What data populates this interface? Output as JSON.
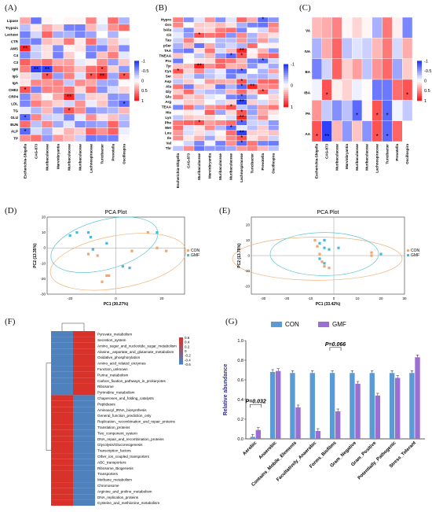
{
  "panels": {
    "A": {
      "label": "(A)",
      "rows": [
        "Lipase",
        "Trypsin",
        "Lactase",
        "CTR",
        "AMS",
        "C4",
        "C3",
        "IgM",
        "IgG",
        "IgA",
        "CHE2",
        "CRP4",
        "LDL",
        "TG",
        "GLU",
        "BUN",
        "ALP",
        "TP"
      ],
      "cols": [
        "Escherichia-Shigella",
        "CAG-873",
        "Muribaculaceae",
        "Marvinbryantia",
        "Muribaculaceae",
        "Muribaculaceae",
        "Lachnospiraceae",
        "Turicibacter",
        "Prevotella",
        "Oscillospira"
      ],
      "legend": [
        "-1",
        "-0.5",
        "0",
        "0.5",
        "1"
      ],
      "stars": [
        {
          "r": 4,
          "c": 0,
          "t": "**"
        },
        {
          "r": 7,
          "c": 1,
          "t": "**"
        },
        {
          "r": 7,
          "c": 2,
          "t": "**"
        },
        {
          "r": 7,
          "c": 7,
          "t": "*"
        },
        {
          "r": 8,
          "c": 2,
          "t": "*"
        },
        {
          "r": 8,
          "c": 6,
          "t": "*"
        },
        {
          "r": 8,
          "c": 7,
          "t": "**"
        },
        {
          "r": 8,
          "c": 9,
          "t": "*"
        },
        {
          "r": 10,
          "c": 0,
          "t": "*"
        },
        {
          "r": 11,
          "c": 4,
          "t": "**"
        },
        {
          "r": 12,
          "c": 9,
          "t": "*"
        },
        {
          "r": 13,
          "c": 4,
          "t": "*"
        },
        {
          "r": 14,
          "c": 0,
          "t": "*"
        },
        {
          "r": 16,
          "c": 0,
          "t": "*"
        }
      ]
    },
    "B": {
      "label": "(B)",
      "rows": [
        "Hypro",
        "Orn",
        "bAla",
        "Cit",
        "Tau",
        "pSer",
        "TAA",
        "TNEAA",
        "Pro",
        "Tyr",
        "Cys",
        "Ser",
        "Asp",
        "Ala",
        "Gly",
        "Glu",
        "Arg",
        "TEAA",
        "His",
        "Lys",
        "Phe",
        "Met",
        "Leu",
        "Ile",
        "Val",
        "Thr"
      ],
      "cols": [
        "Escherichia-Shigella",
        "CAG-873",
        "Muribaculaceae",
        "Marvinbryantia",
        "Muribaculaceae",
        "Muribaculaceae",
        "Lachnospiraceae",
        "Turicibacter",
        "Prevotella",
        "Oscillospira"
      ],
      "legend": [
        "-1",
        "0",
        "1"
      ],
      "stars": [
        {
          "r": 0,
          "c": 8,
          "t": "*"
        },
        {
          "r": 3,
          "c": 2,
          "t": "*"
        },
        {
          "r": 6,
          "c": 6,
          "t": "**"
        },
        {
          "r": 7,
          "c": 5,
          "t": "*"
        },
        {
          "r": 7,
          "c": 6,
          "t": "*"
        },
        {
          "r": 8,
          "c": 8,
          "t": "*"
        },
        {
          "r": 9,
          "c": 2,
          "t": "**"
        },
        {
          "r": 10,
          "c": 0,
          "t": "*"
        },
        {
          "r": 10,
          "c": 6,
          "t": "*"
        },
        {
          "r": 12,
          "c": 6,
          "t": "*"
        },
        {
          "r": 13,
          "c": 6,
          "t": "*"
        },
        {
          "r": 13,
          "c": 7,
          "t": "**"
        },
        {
          "r": 14,
          "c": 8,
          "t": "*"
        },
        {
          "r": 15,
          "c": 6,
          "t": "*"
        },
        {
          "r": 16,
          "c": 6,
          "t": "**"
        },
        {
          "r": 17,
          "c": 5,
          "t": "*"
        },
        {
          "r": 18,
          "c": 6,
          "t": "*"
        },
        {
          "r": 19,
          "c": 6,
          "t": "**"
        },
        {
          "r": 20,
          "c": 6,
          "t": "*"
        },
        {
          "r": 21,
          "c": 5,
          "t": "*"
        },
        {
          "r": 22,
          "c": 6,
          "t": "**"
        },
        {
          "r": 23,
          "c": 6,
          "t": "*"
        },
        {
          "r": 24,
          "c": 6,
          "t": "*"
        },
        {
          "r": 20,
          "c": 2,
          "t": "*"
        }
      ]
    },
    "C": {
      "label": "(C)",
      "rows": [
        "VA",
        "IVA",
        "BA",
        "IBA",
        "PA",
        "AA"
      ],
      "cols": [
        "Escherichia-Shigella",
        "CAG-873",
        "Muribaculaceae",
        "Marvinbryantia",
        "Muribaculaceae",
        "Muribaculaceae",
        "Lachnospiraceae",
        "Turicibacter",
        "Prevotella",
        "Oscillospira"
      ],
      "legend": [
        "-1",
        "-0.5",
        "0",
        "0.5",
        "1"
      ],
      "stars": [
        {
          "r": 3,
          "c": 1,
          "t": "*"
        },
        {
          "r": 3,
          "c": 9,
          "t": "*"
        },
        {
          "r": 4,
          "c": 4,
          "t": "*"
        },
        {
          "r": 4,
          "c": 6,
          "t": "*"
        },
        {
          "r": 4,
          "c": 7,
          "t": "*"
        },
        {
          "r": 5,
          "c": 0,
          "t": "*"
        },
        {
          "r": 5,
          "c": 1,
          "t": "**"
        },
        {
          "r": 5,
          "c": 6,
          "t": "*"
        },
        {
          "r": 5,
          "c": 7,
          "t": "*"
        }
      ]
    },
    "D": {
      "label": "(D)",
      "title": "PCA Plot",
      "xlabel": "PC1 (30.27%)",
      "ylabel": "PC2 (13.35%)",
      "xticks": [
        "-20",
        "0",
        "20"
      ],
      "yticks": [
        "20",
        "10",
        "0",
        "-10",
        "-20",
        "-30"
      ],
      "legend": [
        "CON",
        "GMF"
      ],
      "con": [
        [
          -12,
          -4
        ],
        [
          -8,
          -5
        ],
        [
          -4,
          -18
        ],
        [
          -3,
          -18
        ],
        [
          -6,
          -22
        ],
        [
          7,
          -2
        ],
        [
          18,
          0
        ],
        [
          22,
          -2
        ],
        [
          14,
          10
        ]
      ],
      "gmf": [
        [
          -20,
          8
        ],
        [
          -17,
          10
        ],
        [
          -12,
          10
        ],
        [
          -11,
          7
        ],
        [
          -10,
          -1
        ],
        [
          -4,
          3
        ],
        [
          3,
          -12
        ],
        [
          6,
          -13
        ],
        [
          18,
          10
        ]
      ]
    },
    "E": {
      "label": "(E)",
      "title": "PCA Plot",
      "xlabel": "PC1 (33.42%)",
      "ylabel": "PC2 (13.78%)",
      "xticks": [
        "-30",
        "-20",
        "-10",
        "0",
        "10",
        "20",
        "30"
      ],
      "yticks": [
        "20",
        "10",
        "0",
        "-10",
        "-20"
      ],
      "legend": [
        "CON",
        "GMF"
      ],
      "con": [
        [
          -8,
          10
        ],
        [
          -7,
          6
        ],
        [
          -6,
          1
        ],
        [
          -5,
          -4
        ],
        [
          -4,
          -7
        ],
        [
          -2,
          -8
        ],
        [
          16,
          2
        ],
        [
          16,
          0
        ]
      ],
      "gmf": [
        [
          -6,
          8
        ],
        [
          -4,
          10
        ],
        [
          -4,
          5
        ],
        [
          -2,
          4
        ],
        [
          -6,
          -2
        ],
        [
          -4,
          -5
        ],
        [
          2,
          5
        ],
        [
          20,
          1
        ]
      ]
    },
    "F": {
      "label": "(F)",
      "xlabels": [
        "CON",
        "GMF"
      ],
      "legend": [
        "0.6",
        "0.4",
        "0.2",
        "0",
        "-0.2",
        "-0.4",
        "-0.6"
      ],
      "rows": [
        "Pyruvate_metabolism",
        "Secretion_system",
        "Amino_sugar_and_nucleotide_sugar_metabolism",
        "Alanine,_aspartate_and_glutamate_metabolism",
        "Oxidative_phosphorylation",
        "Amino_acid_related_enzymes",
        "Function_unknown",
        "Purine_metabolism",
        "Carbon_fixation_pathways_in_prokaryotes",
        "Ribosome",
        "Pyrimidine_metabolism",
        "Chaperones_and_folding_catalysts",
        "Peptidases",
        "Aminoacyl_tRNA_biosynthesis",
        "General_function_prediction_only",
        "Replication,_recombination_and_repair_proteins",
        "Translation_proteins",
        "Two_component_system",
        "DNA_repair_and_recombination_proteins",
        "Glycolysis/Gluconeogenesis",
        "Transcription_factors",
        "Other_ion_coupled_transporters",
        "ABC_transporters",
        "Ribosome_Biogenesis",
        "Transporters",
        "Methane_metabolism",
        "Chromosome",
        "Arginine_and_proline_metabolism",
        "DNA_replication_proteins",
        "Cysteine_and_methionine_metabolism"
      ]
    },
    "G": {
      "label": "(G)",
      "ylabel": "Relative abundance",
      "legend": [
        "CON",
        "GMF"
      ],
      "annotations": [
        "P=0.032",
        "P=0.066"
      ],
      "yticks": [
        "0.0",
        "0.2",
        "0.4",
        "0.6",
        "0.8",
        "1.0"
      ]
    }
  },
  "chart_data": [
    {
      "type": "bar",
      "ylabel": "Relative abundance",
      "ylim": [
        0,
        1.0
      ],
      "categories": [
        "Aerobic",
        "Anaerobic",
        "Contains_Mobile_Elements",
        "Facultatively_Anaerobic",
        "Forms_Biofilms",
        "Gram_Negative",
        "Gram_Positive",
        "Potentially_Pathogenic",
        "Stress_Tolerant"
      ],
      "series": [
        {
          "name": "CON",
          "values": [
            0.02,
            0.68,
            0.67,
            0.67,
            0.67,
            0.67,
            0.67,
            0.67,
            0.67
          ]
        },
        {
          "name": "GMF",
          "values": [
            0.09,
            0.69,
            0.32,
            0.08,
            0.28,
            0.56,
            0.44,
            0.62,
            0.83
          ]
        }
      ],
      "colors": {
        "CON": "#5b9bd5",
        "GMF": "#9b6fd1"
      }
    }
  ]
}
